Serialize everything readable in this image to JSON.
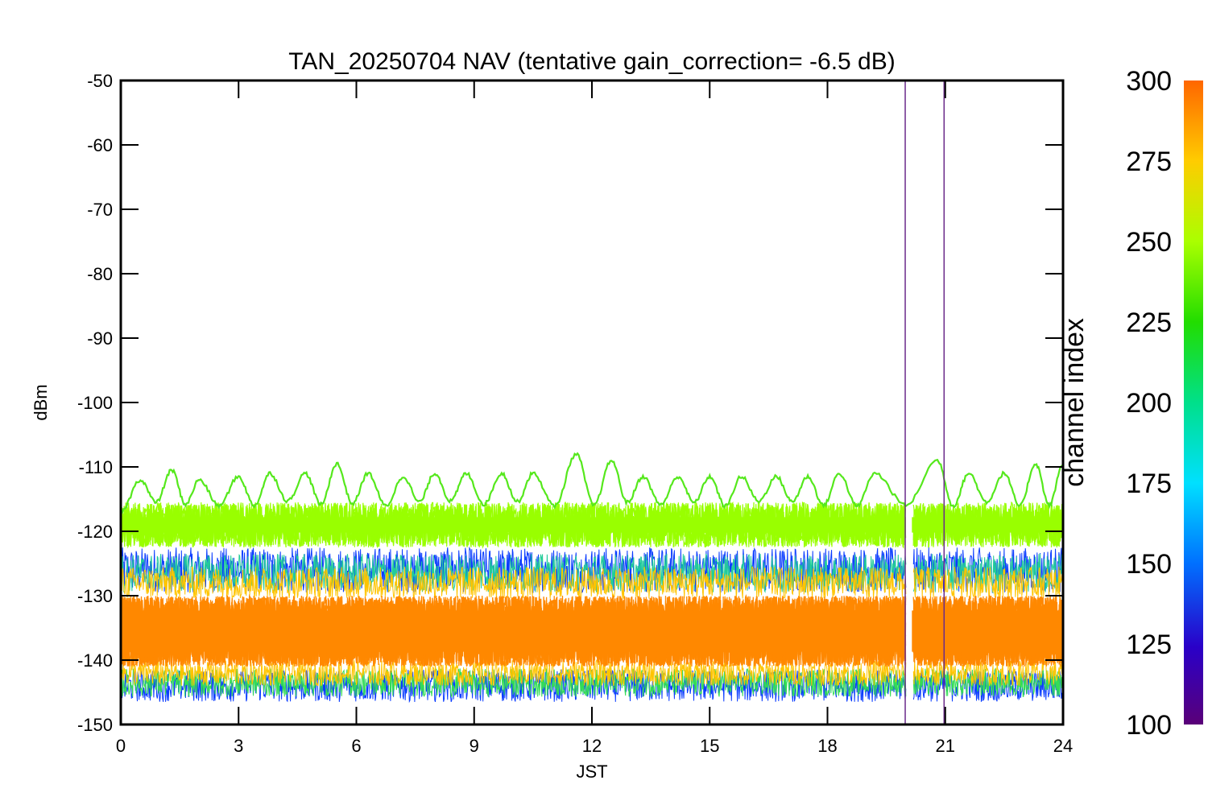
{
  "chart_data": {
    "type": "line",
    "title": "TAN_20250704 NAV (tentative gain_correction= -6.5 dB)",
    "xlabel": "JST",
    "ylabel": "dBm",
    "xlim": [
      0,
      24
    ],
    "ylim": [
      -150,
      -50
    ],
    "x_ticks": [
      0,
      3,
      6,
      9,
      12,
      15,
      18,
      21,
      24
    ],
    "y_ticks": [
      -50,
      -60,
      -70,
      -80,
      -90,
      -100,
      -110,
      -120,
      -130,
      -140,
      -150
    ],
    "grid": false,
    "colorbar": {
      "label": "channel index",
      "range": [
        100,
        300
      ],
      "ticks": [
        300,
        275,
        250,
        225,
        200,
        175,
        150,
        125,
        100
      ],
      "colormap": "rainbow"
    },
    "series_colors": {
      "periodic_channel": "#55e81c",
      "upper_band": "#99ff00",
      "middle_band": "#ff8800",
      "lower_band": "#33dd55",
      "scattered": "#22cc99"
    },
    "bands": [
      {
        "name": "",
        "color": "#99ff00",
        "center_dBm": -119,
        "spread_dBm": 3.5,
        "range_x": [
          0,
          24
        ],
        "gap_x": [
          20.0,
          20.15
        ]
      },
      {
        "name": "",
        "color": "#ff8800",
        "center_dBm": -135.5,
        "spread_dBm": 5.5,
        "range_x": [
          0,
          24
        ],
        "gap_x": [
          20.0,
          20.15
        ]
      }
    ],
    "periodic_channel": {
      "color": "#55e81c",
      "mean_dBm": -113,
      "amplitude_dB": 2.3,
      "period_hours": 1.0,
      "peak_x": [
        0.5,
        1.3,
        2.0,
        3.0,
        3.8,
        4.7,
        5.5,
        6.3,
        7.2,
        8.0,
        8.8,
        9.7,
        10.5,
        11.6,
        12.5,
        13.3,
        14.2,
        15.0,
        15.8,
        16.7,
        17.5,
        18.3,
        19.2,
        20.8,
        21.6,
        22.5,
        23.3,
        24.0
      ],
      "peak_dBm": [
        -112,
        -110.5,
        -112,
        -111.5,
        -111,
        -111,
        -109.5,
        -111,
        -111.5,
        -111,
        -111,
        -111,
        -111,
        -108,
        -109,
        -111.5,
        -111.5,
        -111.5,
        -111.5,
        -111.5,
        -111.5,
        -111,
        -111,
        -109,
        -111,
        -111,
        -109.5,
        -109.5
      ]
    },
    "vertical_spikes": [
      {
        "x": 19.98,
        "y_top": -50,
        "y_bottom": -150,
        "color": "#6a2a8a"
      },
      {
        "x": 20.97,
        "y_top": -50,
        "y_bottom": -150,
        "color": "#6a2a8a"
      }
    ]
  }
}
